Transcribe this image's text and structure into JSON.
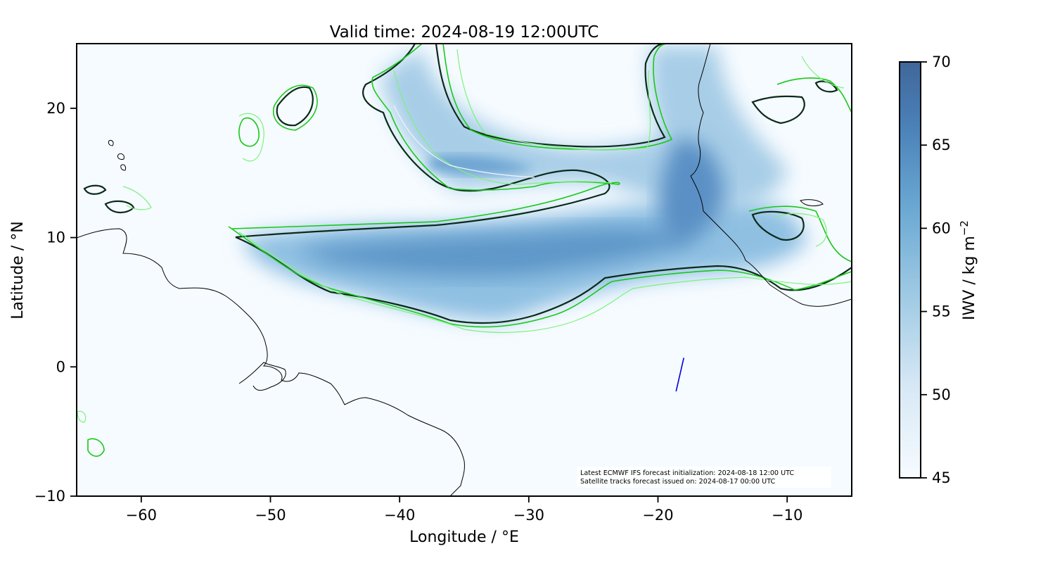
{
  "title": "Valid time: 2024-08-19 12:00UTC",
  "xlabel": "Longitude / °E",
  "ylabel": "Latitude / °N",
  "x_ticks": [
    "−60",
    "−50",
    "−40",
    "−30",
    "−20",
    "−10"
  ],
  "y_ticks": [
    "20",
    "10",
    "0",
    "−10"
  ],
  "colorbar": {
    "label": "IWV / kg m",
    "label_exponent": "−2",
    "ticks": [
      "70",
      "65",
      "60",
      "55",
      "50",
      "45"
    ],
    "colors": {
      "low": "#f6fbff",
      "mid": "#78b4da",
      "high": "#40679a"
    }
  },
  "info_box": {
    "line1": "Latest ECMWF IFS forecast initialization: 2024-08-18 12:00 UTC",
    "line2": "Satellite tracks forecast issued on: 2024-08-17 00:00 UTC"
  },
  "colors": {
    "contour_dark": "#0b2a1a",
    "contour_green": "#17c917",
    "contour_lightgreen": "#7cf27c",
    "coastline": "#000000",
    "satellite_track": "#0000dd"
  },
  "chart_data": {
    "type": "heatmap",
    "title": "Valid time: 2024-08-19 12:00UTC",
    "xlabel": "Longitude / °E",
    "ylabel": "Latitude / °N",
    "xlim": [
      -65,
      -5
    ],
    "ylim": [
      -10,
      25
    ],
    "x_ticks": [
      -60,
      -50,
      -40,
      -30,
      -20,
      -10
    ],
    "y_ticks": [
      -10,
      0,
      10,
      20
    ],
    "colorbar": {
      "label": "IWV / kg m−2",
      "range": [
        45,
        70
      ],
      "ticks": [
        45,
        50,
        55,
        60,
        65,
        70
      ]
    },
    "satellite_track": {
      "lon": [
        -18.6,
        -18.0
      ],
      "lat": [
        -1.9,
        0.7
      ]
    },
    "grid": false
  }
}
